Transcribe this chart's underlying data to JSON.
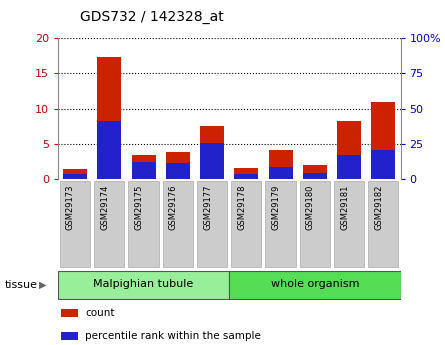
{
  "title": "GDS732 / 142328_at",
  "categories": [
    "GSM29173",
    "GSM29174",
    "GSM29175",
    "GSM29176",
    "GSM29177",
    "GSM29178",
    "GSM29179",
    "GSM29180",
    "GSM29181",
    "GSM29182"
  ],
  "count_values": [
    1.4,
    17.3,
    3.5,
    3.9,
    7.5,
    1.6,
    4.1,
    2.1,
    8.3,
    11.0
  ],
  "percentile_values": [
    3.5,
    41.0,
    12.5,
    11.5,
    25.5,
    3.5,
    9.0,
    4.5,
    17.5,
    21.0
  ],
  "left_ylim": [
    0,
    20
  ],
  "right_ylim": [
    0,
    100
  ],
  "left_yticks": [
    0,
    5,
    10,
    15,
    20
  ],
  "right_yticks": [
    0,
    25,
    50,
    75,
    100
  ],
  "right_yticklabels": [
    "0",
    "25",
    "50",
    "75",
    "100%"
  ],
  "left_ycolor": "#cc0000",
  "right_ycolor": "#0000cc",
  "bar_color_count": "#cc2200",
  "bar_color_pct": "#2222cc",
  "bar_width": 0.7,
  "groups": [
    {
      "label": "Malpighian tubule",
      "indices": [
        0,
        1,
        2,
        3,
        4
      ],
      "color": "#99ee99"
    },
    {
      "label": "whole organism",
      "indices": [
        5,
        6,
        7,
        8,
        9
      ],
      "color": "#55dd55"
    }
  ],
  "tissue_label": "tissue",
  "legend_items": [
    {
      "color": "#cc2200",
      "label": "count"
    },
    {
      "color": "#2222cc",
      "label": "percentile rank within the sample"
    }
  ],
  "bg_color": "white",
  "xtick_box_color": "#cccccc",
  "xtick_box_edge": "#aaaaaa"
}
